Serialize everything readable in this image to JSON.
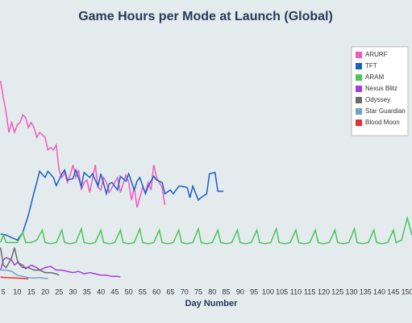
{
  "chart_data": {
    "type": "line",
    "title": "Game Hours per Mode at Launch (Global)",
    "x_label": "Day Number",
    "xlim": [
      3.8,
      151.7
    ],
    "ylim": [
      0,
      100
    ],
    "xticks": [
      5,
      10,
      15,
      20,
      25,
      30,
      35,
      40,
      45,
      50,
      55,
      60,
      65,
      70,
      75,
      80,
      85,
      90,
      95,
      100,
      105,
      110,
      115,
      120,
      125,
      130,
      135,
      140,
      145,
      150
    ],
    "grid": false,
    "legend": "upper right",
    "series": [
      {
        "name": "ARURF",
        "color": "#f25bbd",
        "x": [
          4,
          5,
          6,
          7,
          8,
          9,
          10,
          11,
          12,
          13,
          14,
          15,
          16,
          17,
          18,
          20,
          21,
          22,
          23,
          24,
          25,
          26,
          27,
          28,
          29,
          30,
          31,
          32,
          33,
          34,
          35,
          36,
          38,
          39,
          40,
          41,
          42,
          43,
          44,
          46,
          47,
          49,
          50,
          51,
          52,
          53,
          54,
          55,
          56,
          57,
          58,
          59,
          60,
          62,
          63
        ],
        "values": [
          80.6,
          74,
          68,
          60,
          64,
          60,
          63,
          64,
          67,
          66,
          62,
          64,
          62,
          58,
          60,
          58,
          53,
          54,
          53,
          55,
          45,
          42,
          44,
          40,
          43,
          47,
          42,
          45,
          37,
          40,
          41,
          36,
          47,
          38,
          37,
          42,
          40,
          36,
          38,
          42,
          36,
          43,
          40,
          33,
          38,
          30,
          34,
          38,
          36,
          40,
          37,
          47,
          42,
          38,
          31
        ]
      },
      {
        "name": "TFT",
        "color": "#1a5fc8",
        "x": [
          4,
          6,
          8,
          10,
          12,
          14,
          16,
          17,
          18,
          20,
          21,
          23,
          24,
          26,
          27,
          28,
          30,
          31,
          33,
          34,
          36,
          37,
          39,
          40,
          42,
          43,
          44,
          46,
          47,
          49,
          50,
          52,
          53,
          54,
          56,
          57,
          59,
          60,
          62,
          63,
          65,
          66,
          68,
          69,
          71,
          72,
          73,
          75,
          76,
          78,
          79,
          81,
          82,
          84
        ],
        "values": [
          19.4,
          19,
          18,
          17,
          20,
          27,
          36,
          40,
          44.5,
          42,
          44.5,
          42,
          38.7,
          43.5,
          45,
          41,
          41.5,
          45,
          38.5,
          44,
          42,
          43.5,
          38.5,
          43.5,
          35.5,
          39.5,
          40,
          37,
          42.5,
          40.5,
          43.5,
          37,
          40.5,
          42,
          35.5,
          38.5,
          42.5,
          41,
          40,
          35.5,
          37,
          35.5,
          38.5,
          38.5,
          38,
          33.9,
          38.5,
          33,
          34,
          35.5,
          43.5,
          44,
          36.5,
          36.5
        ]
      },
      {
        "name": "ARAM",
        "color": "#4cc45b",
        "x": [
          4,
          5,
          6,
          8,
          10,
          12,
          13,
          15,
          17,
          19,
          20,
          22,
          24,
          26,
          27,
          29,
          31,
          33,
          34,
          36,
          38,
          40,
          41,
          43,
          45,
          47,
          48,
          50,
          52,
          54,
          55,
          57,
          59,
          61,
          62,
          64,
          66,
          68,
          69,
          71,
          73,
          75,
          76,
          78,
          80,
          82,
          83,
          85,
          87,
          89,
          90,
          92,
          94,
          96,
          97,
          99,
          101,
          103,
          104,
          106,
          108,
          110,
          111,
          113,
          115,
          117,
          118,
          120,
          122,
          124,
          125,
          127,
          129,
          131,
          132,
          134,
          136,
          138,
          139,
          141,
          143,
          145,
          146,
          148,
          150,
          151.7
        ],
        "values": [
          16,
          19,
          16,
          16,
          16,
          20,
          16,
          16,
          17,
          21,
          16,
          15.5,
          16,
          21,
          16,
          15.5,
          16,
          21.5,
          16,
          15.5,
          16,
          21,
          16,
          15.5,
          16,
          21,
          16,
          15.5,
          16,
          21.5,
          16,
          15.5,
          16,
          21,
          16,
          15.5,
          16,
          21,
          16,
          15.5,
          16,
          21.5,
          16,
          15.5,
          16,
          21,
          16,
          15.5,
          16,
          21,
          16,
          15.5,
          16,
          21,
          16,
          15.5,
          16,
          21.5,
          16,
          15.5,
          16,
          21,
          16,
          15.5,
          16,
          21,
          16,
          15.5,
          16,
          21,
          16,
          15.5,
          16,
          21.5,
          16,
          15.5,
          16,
          21,
          16,
          15.5,
          16,
          21,
          16,
          17,
          25.8,
          19
        ]
      },
      {
        "name": "Nexus Blitz",
        "color": "#a43ee0",
        "x": [
          4,
          5,
          6,
          8,
          9,
          10,
          12,
          13,
          15,
          17,
          18,
          20,
          22,
          24,
          26,
          28,
          30,
          32,
          34,
          36,
          38,
          40,
          42,
          44,
          46,
          47
        ],
        "values": [
          5,
          9,
          10,
          9,
          7,
          8,
          7,
          5.5,
          7,
          6,
          5,
          6,
          6.5,
          5,
          5,
          4.5,
          4,
          4.5,
          3.5,
          4,
          3.5,
          3,
          3,
          2.5,
          2.5,
          2.3
        ]
      },
      {
        "name": "Odyssey",
        "color": "#6b6b6b",
        "x": [
          4,
          5,
          6,
          7,
          8,
          9,
          10,
          11,
          12,
          14,
          16,
          18,
          20,
          22,
          24,
          25
        ],
        "values": [
          14,
          7,
          6,
          8,
          10,
          14,
          9,
          7,
          6,
          6,
          5,
          5,
          4,
          4,
          3.5,
          3
        ]
      },
      {
        "name": "Star Guardian",
        "color": "#6fa3c8",
        "x": [
          4,
          6,
          8,
          10,
          12,
          14,
          16,
          18,
          20,
          21
        ],
        "values": [
          5,
          5,
          4.5,
          3,
          2.5,
          2,
          1.8,
          2,
          1.7,
          1.6
        ]
      },
      {
        "name": "Blood Moon",
        "color": "#e83030",
        "x": [
          4,
          6,
          8,
          10,
          12,
          14
        ],
        "values": [
          2.2,
          2,
          1.9,
          1.8,
          1.7,
          1.5
        ]
      }
    ]
  }
}
